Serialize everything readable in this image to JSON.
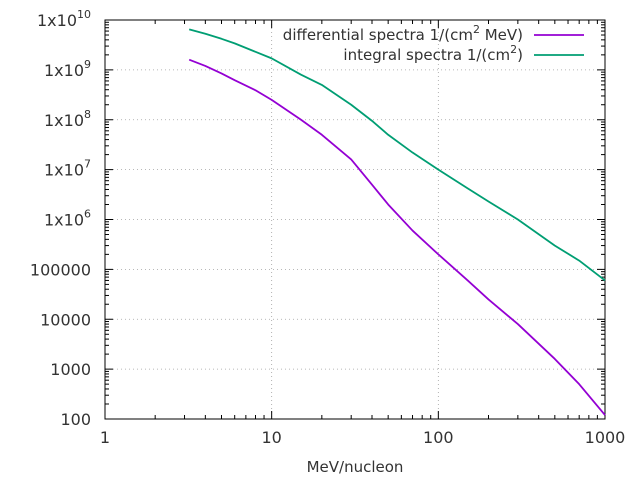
{
  "chart_data": {
    "type": "line",
    "title": "",
    "xlabel": "MeV/nucleon",
    "ylabel": "",
    "xscale": "log",
    "yscale": "log",
    "xlim": [
      1,
      1000
    ],
    "ylim": [
      100,
      10000000000
    ],
    "grid": true,
    "legend_position": "top-right",
    "x_ticks": [
      {
        "value": 1,
        "label": "1"
      },
      {
        "value": 10,
        "label": "10"
      },
      {
        "value": 100,
        "label": "100"
      },
      {
        "value": 1000,
        "label": "1000"
      }
    ],
    "y_ticks": [
      {
        "value": 100,
        "label": "100",
        "exp": ""
      },
      {
        "value": 1000,
        "label": "1000",
        "exp": ""
      },
      {
        "value": 10000,
        "label": "10000",
        "exp": ""
      },
      {
        "value": 100000,
        "label": "100000",
        "exp": ""
      },
      {
        "value": 1000000,
        "label": "1x10",
        "exp": "6"
      },
      {
        "value": 10000000,
        "label": "1x10",
        "exp": "7"
      },
      {
        "value": 100000000,
        "label": "1x10",
        "exp": "8"
      },
      {
        "value": 1000000000,
        "label": "1x10",
        "exp": "9"
      },
      {
        "value": 10000000000,
        "label": "1x10",
        "exp": "10"
      }
    ],
    "series": [
      {
        "name": "differential spectra",
        "legend_prefix": "differential spectra 1/(cm",
        "legend_sup": "2",
        "legend_suffix": " MeV)",
        "color": "#9400d3",
        "x": [
          3.2,
          4,
          5,
          6,
          8,
          10,
          15,
          20,
          30,
          40,
          50,
          70,
          100,
          150,
          200,
          300,
          500,
          700,
          1000
        ],
        "y": [
          1600000000.0,
          1200000000.0,
          850000000.0,
          620000000.0,
          390000000.0,
          250000000.0,
          100000000.0,
          50000000.0,
          16000000.0,
          5000000.0,
          2000000.0,
          600000.0,
          200000.0,
          60000.0,
          25000.0,
          8000.0,
          1600.0,
          500.0,
          120.0
        ]
      },
      {
        "name": "integral spectra",
        "legend_prefix": "integral spectra 1/(cm",
        "legend_sup": "2",
        "legend_suffix": ")",
        "color": "#009e73",
        "x": [
          3.2,
          4,
          5,
          6,
          8,
          10,
          15,
          20,
          30,
          40,
          50,
          70,
          100,
          150,
          200,
          300,
          500,
          700,
          1000
        ],
        "y": [
          6500000000.0,
          5300000000.0,
          4200000000.0,
          3400000000.0,
          2300000000.0,
          1700000000.0,
          800000000.0,
          500000000.0,
          200000000.0,
          95000000.0,
          50000000.0,
          22000000.0,
          10000000.0,
          4200000.0,
          2300000.0,
          1000000.0,
          300000.0,
          150000.0,
          60000.0
        ]
      }
    ]
  }
}
